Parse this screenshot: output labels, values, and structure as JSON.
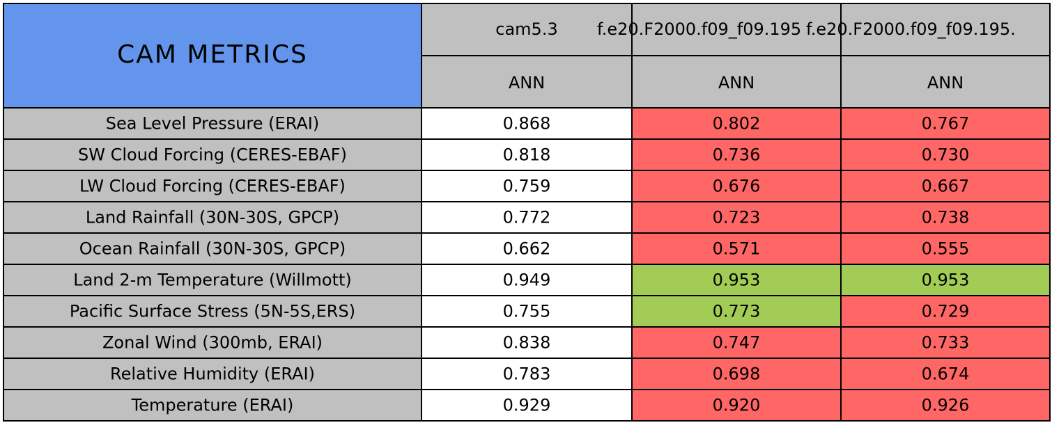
{
  "header": {
    "title": "CAM METRICS",
    "cases": [
      "cam5.3",
      "f.e20.F2000.f09_f09.195",
      "f.e20.F2000.f09_f09.195."
    ],
    "seasons": [
      "ANN",
      "ANN",
      "ANN"
    ]
  },
  "table": {
    "rows": [
      [
        "Sea Level Pressure (ERAI)",
        "0.868",
        "0.802",
        "0.767"
      ],
      [
        "SW Cloud Forcing (CERES-EBAF)",
        "0.818",
        "0.736",
        "0.730"
      ],
      [
        "LW Cloud Forcing (CERES-EBAF)",
        "0.759",
        "0.676",
        "0.667"
      ],
      [
        "Land Rainfall (30N-30S, GPCP)",
        "0.772",
        "0.723",
        "0.738"
      ],
      [
        "Ocean Rainfall (30N-30S, GPCP)",
        "0.662",
        "0.571",
        "0.555"
      ],
      [
        "Land 2-m Temperature (Willmott)",
        "0.949",
        "0.953",
        "0.953"
      ],
      [
        "Pacific Surface Stress (5N-5S,ERS)",
        "0.755",
        "0.773",
        "0.729"
      ],
      [
        "Zonal Wind (300mb, ERAI)",
        "0.838",
        "0.747",
        "0.733"
      ],
      [
        "Relative Humidity (ERAI)",
        "0.783",
        "0.698",
        "0.674"
      ],
      [
        "Temperature (ERAI)",
        "0.929",
        "0.920",
        "0.926"
      ]
    ],
    "cell_colors": [
      [
        "#ffffff",
        "#ff6666",
        "#ff6666"
      ],
      [
        "#ffffff",
        "#ff6666",
        "#ff6666"
      ],
      [
        "#ffffff",
        "#ff6666",
        "#ff6666"
      ],
      [
        "#ffffff",
        "#ff6666",
        "#ff6666"
      ],
      [
        "#ffffff",
        "#ff6666",
        "#ff6666"
      ],
      [
        "#ffffff",
        "#a2cc55",
        "#a2cc55"
      ],
      [
        "#ffffff",
        "#a2cc55",
        "#ff6666"
      ],
      [
        "#ffffff",
        "#ff6666",
        "#ff6666"
      ],
      [
        "#ffffff",
        "#ff6666",
        "#ff6666"
      ],
      [
        "#ffffff",
        "#ff6666",
        "#ff6666"
      ]
    ]
  }
}
